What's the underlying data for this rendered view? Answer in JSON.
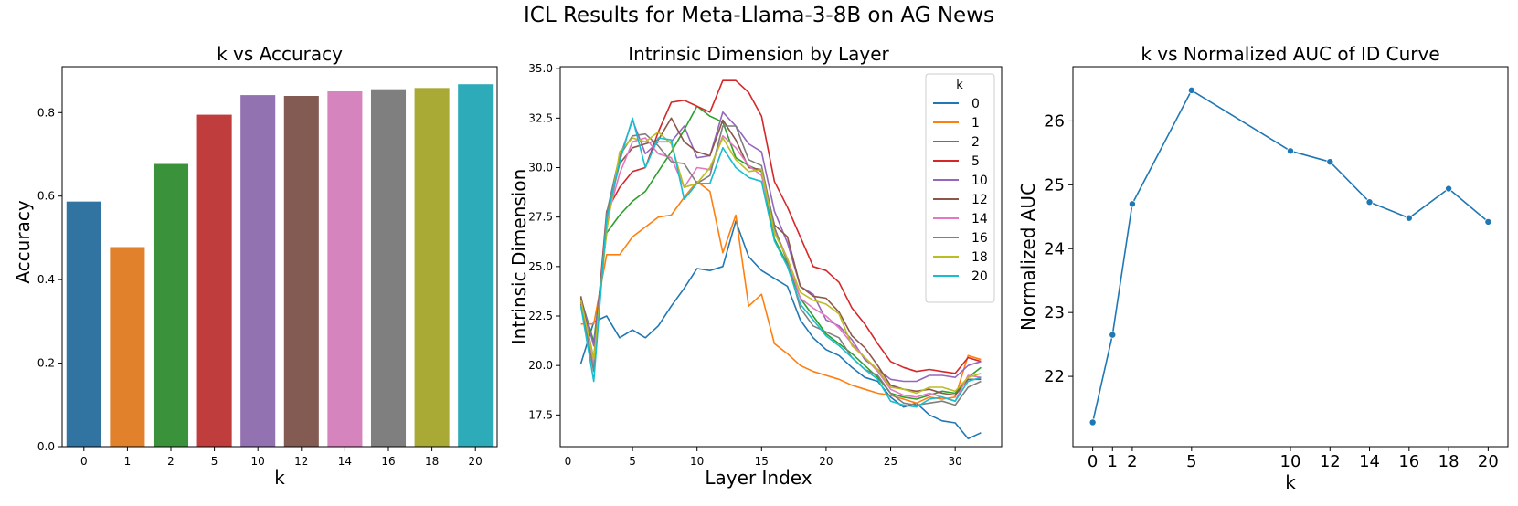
{
  "figure": {
    "title": "ICL Results for Meta-Llama-3-8B on AG News"
  },
  "chart_data": [
    {
      "type": "bar",
      "title": "k vs Accuracy",
      "xlabel": "k",
      "ylabel": "Accuracy",
      "ylim": [
        0,
        0.91
      ],
      "yticks": [
        0.0,
        0.2,
        0.4,
        0.6,
        0.8
      ],
      "ytick_labels": [
        "0.0",
        "0.2",
        "0.4",
        "0.6",
        "0.8"
      ],
      "categories": [
        "0",
        "1",
        "2",
        "5",
        "10",
        "12",
        "14",
        "16",
        "18",
        "20"
      ],
      "values": [
        0.587,
        0.478,
        0.677,
        0.795,
        0.842,
        0.84,
        0.851,
        0.856,
        0.859,
        0.868
      ],
      "colors": [
        "#3274a1",
        "#e1812c",
        "#3a923a",
        "#c03d3e",
        "#9372b2",
        "#845b53",
        "#d684bd",
        "#7f7f7f",
        "#a9aa35",
        "#2eabb8"
      ]
    },
    {
      "type": "line",
      "title": "Intrinsic Dimension by Layer",
      "xlabel": "Layer Index",
      "ylabel": "Intrinsic Dimension",
      "xlim": [
        -0.6,
        33.6
      ],
      "ylim": [
        15.9,
        35.1
      ],
      "xticks": [
        0,
        5,
        10,
        15,
        20,
        25,
        30
      ],
      "yticks": [
        17.5,
        20.0,
        22.5,
        25.0,
        27.5,
        30.0,
        32.5,
        35.0
      ],
      "ytick_labels": [
        "17.5",
        "20.0",
        "22.5",
        "25.0",
        "27.5",
        "30.0",
        "32.5",
        "35.0"
      ],
      "legend_title": "k",
      "legend_loc": "upper right",
      "x": [
        1,
        2,
        3,
        4,
        5,
        6,
        7,
        8,
        9,
        10,
        11,
        12,
        13,
        14,
        15,
        16,
        17,
        18,
        19,
        20,
        21,
        22,
        23,
        24,
        25,
        26,
        27,
        28,
        29,
        30,
        31,
        32
      ],
      "series": [
        {
          "name": "0",
          "color": "#1f77b4",
          "values": [
            20.1,
            22.2,
            22.5,
            21.4,
            21.8,
            21.4,
            22.0,
            23.0,
            23.9,
            24.9,
            24.8,
            25.0,
            27.3,
            25.5,
            24.8,
            24.4,
            24.0,
            22.3,
            21.4,
            20.8,
            20.5,
            19.9,
            19.4,
            19.2,
            18.4,
            17.9,
            18.1,
            17.5,
            17.2,
            17.1,
            16.3,
            16.6
          ]
        },
        {
          "name": "1",
          "color": "#ff7f0e",
          "values": [
            22.1,
            22.1,
            25.6,
            25.6,
            26.5,
            27.0,
            27.5,
            27.6,
            28.5,
            29.3,
            28.8,
            25.7,
            27.6,
            23.0,
            23.6,
            21.1,
            20.6,
            20.0,
            19.7,
            19.5,
            19.3,
            19.0,
            18.8,
            18.6,
            18.5,
            18.3,
            18.1,
            18.4,
            18.3,
            18.4,
            20.5,
            20.3
          ]
        },
        {
          "name": "2",
          "color": "#2ca02c",
          "values": [
            23.4,
            21.2,
            26.7,
            27.6,
            28.3,
            28.8,
            29.8,
            30.8,
            31.9,
            33.1,
            32.6,
            32.3,
            30.5,
            30.1,
            29.8,
            26.4,
            25.1,
            23.4,
            22.5,
            21.6,
            21.1,
            20.6,
            20.0,
            19.4,
            18.6,
            18.4,
            18.3,
            18.5,
            18.7,
            18.6,
            19.4,
            19.9
          ]
        },
        {
          "name": "5",
          "color": "#d62728",
          "values": [
            23.1,
            20.3,
            27.8,
            29.0,
            29.8,
            30.0,
            31.8,
            33.3,
            33.4,
            33.1,
            32.8,
            34.4,
            34.4,
            33.8,
            32.6,
            29.3,
            28.0,
            26.5,
            25.0,
            24.8,
            24.2,
            22.9,
            22.1,
            21.1,
            20.2,
            19.9,
            19.7,
            19.8,
            19.7,
            19.6,
            20.4,
            20.2
          ]
        },
        {
          "name": "10",
          "color": "#9467bd",
          "values": [
            23.4,
            21.0,
            27.0,
            30.5,
            32.4,
            30.7,
            31.3,
            31.3,
            32.1,
            30.5,
            30.6,
            32.8,
            32.1,
            31.2,
            30.8,
            27.8,
            26.2,
            24.0,
            23.6,
            22.3,
            22.0,
            21.3,
            20.3,
            19.8,
            19.3,
            19.2,
            19.2,
            19.5,
            19.5,
            19.4,
            20.0,
            20.2
          ]
        },
        {
          "name": "12",
          "color": "#8c564b",
          "values": [
            23.5,
            20.3,
            27.5,
            30.2,
            31.0,
            31.2,
            31.4,
            32.5,
            31.3,
            30.8,
            30.6,
            32.4,
            31.4,
            30.0,
            29.9,
            27.1,
            26.5,
            24.0,
            23.5,
            23.4,
            22.7,
            21.5,
            20.9,
            20.0,
            19.0,
            18.8,
            18.7,
            18.8,
            18.6,
            18.5,
            19.3,
            19.3
          ]
        },
        {
          "name": "14",
          "color": "#e377c2",
          "values": [
            23.3,
            20.0,
            27.3,
            29.7,
            31.3,
            31.5,
            30.7,
            30.5,
            29.0,
            30.0,
            29.9,
            31.6,
            31.0,
            30.1,
            29.6,
            26.9,
            25.4,
            23.4,
            22.9,
            22.5,
            21.9,
            21.1,
            20.4,
            19.7,
            18.8,
            18.5,
            18.4,
            18.6,
            18.4,
            18.2,
            19.5,
            19.4
          ]
        },
        {
          "name": "16",
          "color": "#7f7f7f",
          "values": [
            23.2,
            19.7,
            27.7,
            30.6,
            31.6,
            31.7,
            31.1,
            30.3,
            30.2,
            29.2,
            29.6,
            32.1,
            32.1,
            30.4,
            30.1,
            27.0,
            25.2,
            22.9,
            22.0,
            21.7,
            21.4,
            20.4,
            19.8,
            19.5,
            18.6,
            18.1,
            18.0,
            18.1,
            18.2,
            18.0,
            18.9,
            19.2
          ]
        },
        {
          "name": "18",
          "color": "#bcbd22",
          "values": [
            23.3,
            20.3,
            26.8,
            30.8,
            31.5,
            31.3,
            31.8,
            31.2,
            29.0,
            29.2,
            30.0,
            31.5,
            30.4,
            29.8,
            29.9,
            26.7,
            25.4,
            23.7,
            23.3,
            23.1,
            22.6,
            21.0,
            20.4,
            19.8,
            18.9,
            18.8,
            18.6,
            18.9,
            18.9,
            18.7,
            19.4,
            19.6
          ]
        },
        {
          "name": "20",
          "color": "#17becf",
          "values": [
            23.0,
            19.2,
            27.4,
            30.3,
            32.5,
            30.0,
            31.5,
            31.4,
            28.4,
            29.2,
            29.2,
            31.0,
            30.0,
            29.5,
            29.3,
            26.3,
            25.0,
            23.1,
            22.3,
            21.5,
            21.0,
            20.4,
            19.8,
            19.3,
            18.2,
            18.0,
            17.9,
            18.3,
            18.4,
            18.2,
            19.2,
            19.4
          ]
        }
      ]
    },
    {
      "type": "line",
      "title": "k vs Normalized AUC of ID Curve",
      "xlabel": "k",
      "ylabel": "Normalized AUC",
      "xlim": [
        -1.0,
        21.0
      ],
      "ylim": [
        20.9,
        26.85
      ],
      "xticks": [
        0,
        1,
        2,
        5,
        10,
        12,
        14,
        16,
        18,
        20
      ],
      "yticks": [
        22,
        23,
        24,
        25,
        26
      ],
      "color": "#1f77b4",
      "marker": "circle",
      "x": [
        0,
        1,
        2,
        5,
        10,
        12,
        14,
        16,
        18,
        20
      ],
      "y": [
        21.28,
        22.65,
        24.7,
        26.48,
        25.53,
        25.36,
        24.73,
        24.48,
        24.94,
        24.42
      ]
    }
  ]
}
